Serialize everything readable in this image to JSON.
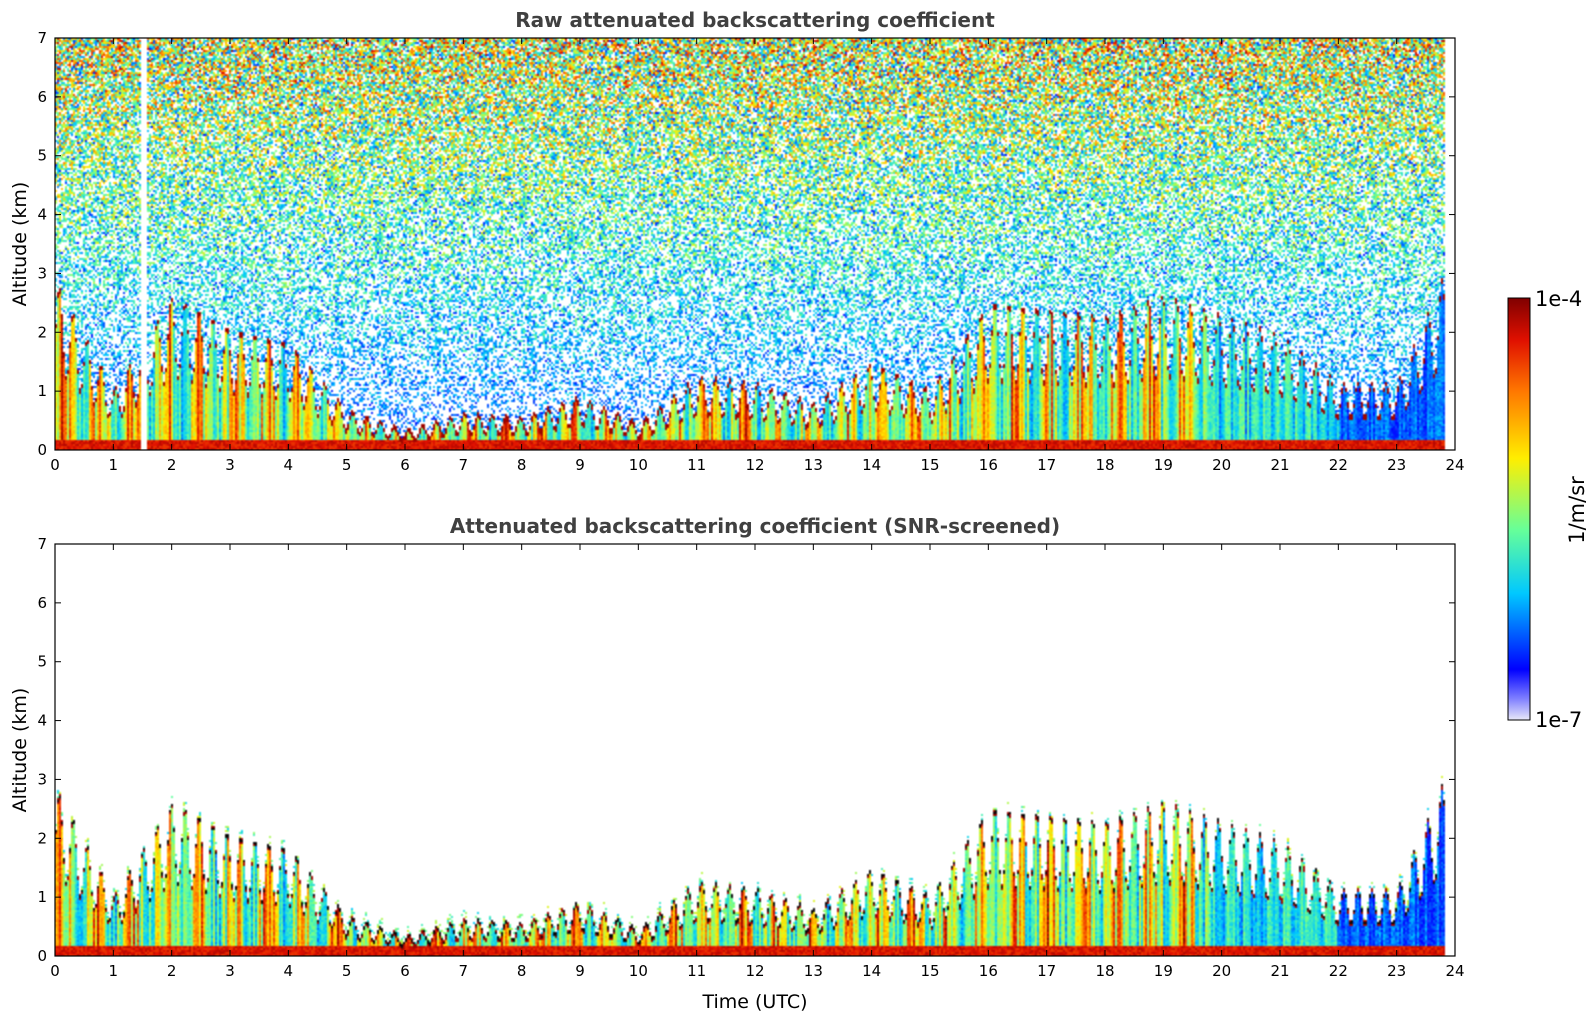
{
  "chart_data": [
    {
      "type": "heatmap",
      "title": "Raw attenuated backscattering coefficient",
      "xlabel": "",
      "ylabel": "Altitude (km)",
      "xlim": [
        0,
        24
      ],
      "ylim": [
        0,
        7
      ],
      "xticks": [
        "0",
        "1",
        "2",
        "3",
        "4",
        "5",
        "6",
        "7",
        "8",
        "9",
        "10",
        "11",
        "12",
        "13",
        "14",
        "15",
        "16",
        "17",
        "18",
        "19",
        "20",
        "21",
        "22",
        "23",
        "24"
      ],
      "yticks": [
        "0",
        "1",
        "2",
        "3",
        "4",
        "5",
        "6",
        "7"
      ],
      "data_gap_hours": [
        1.45,
        1.55
      ],
      "boundary_layer_top_km": [
        [
          0.0,
          2.5
        ],
        [
          1.0,
          0.9
        ],
        [
          2.0,
          2.3
        ],
        [
          3.0,
          1.8
        ],
        [
          4.0,
          1.6
        ],
        [
          5.0,
          0.6
        ],
        [
          6.0,
          0.3
        ],
        [
          7.0,
          0.55
        ],
        [
          8.0,
          0.5
        ],
        [
          9.0,
          0.8
        ],
        [
          10.0,
          0.4
        ],
        [
          11.0,
          1.1
        ],
        [
          12.0,
          1.0
        ],
        [
          13.0,
          0.7
        ],
        [
          14.0,
          1.3
        ],
        [
          15.0,
          0.9
        ],
        [
          16.0,
          2.2
        ],
        [
          17.0,
          2.1
        ],
        [
          18.0,
          2.0
        ],
        [
          19.0,
          2.3
        ],
        [
          20.0,
          2.0
        ],
        [
          21.0,
          1.7
        ],
        [
          22.0,
          1.0
        ],
        [
          23.0,
          1.0
        ],
        [
          23.8,
          2.6
        ]
      ]
    },
    {
      "type": "heatmap",
      "title": "Attenuated backscattering coefficient (SNR-screened)",
      "xlabel": "Time (UTC)",
      "ylabel": "Altitude (km)",
      "xlim": [
        0,
        24
      ],
      "ylim": [
        0,
        7
      ],
      "xticks": [
        "0",
        "1",
        "2",
        "3",
        "4",
        "5",
        "6",
        "7",
        "8",
        "9",
        "10",
        "11",
        "12",
        "13",
        "14",
        "15",
        "16",
        "17",
        "18",
        "19",
        "20",
        "21",
        "22",
        "23",
        "24"
      ],
      "yticks": [
        "0",
        "1",
        "2",
        "3",
        "4",
        "5",
        "6",
        "7"
      ]
    }
  ],
  "colorbar": {
    "label": "1/m/sr",
    "max_label": "1e-4",
    "min_label": "1e-7",
    "colormap": [
      "#e8e8f8",
      "#0000ff",
      "#00ccff",
      "#88ff66",
      "#ffee00",
      "#ff8800",
      "#dd1100",
      "#800000"
    ]
  }
}
